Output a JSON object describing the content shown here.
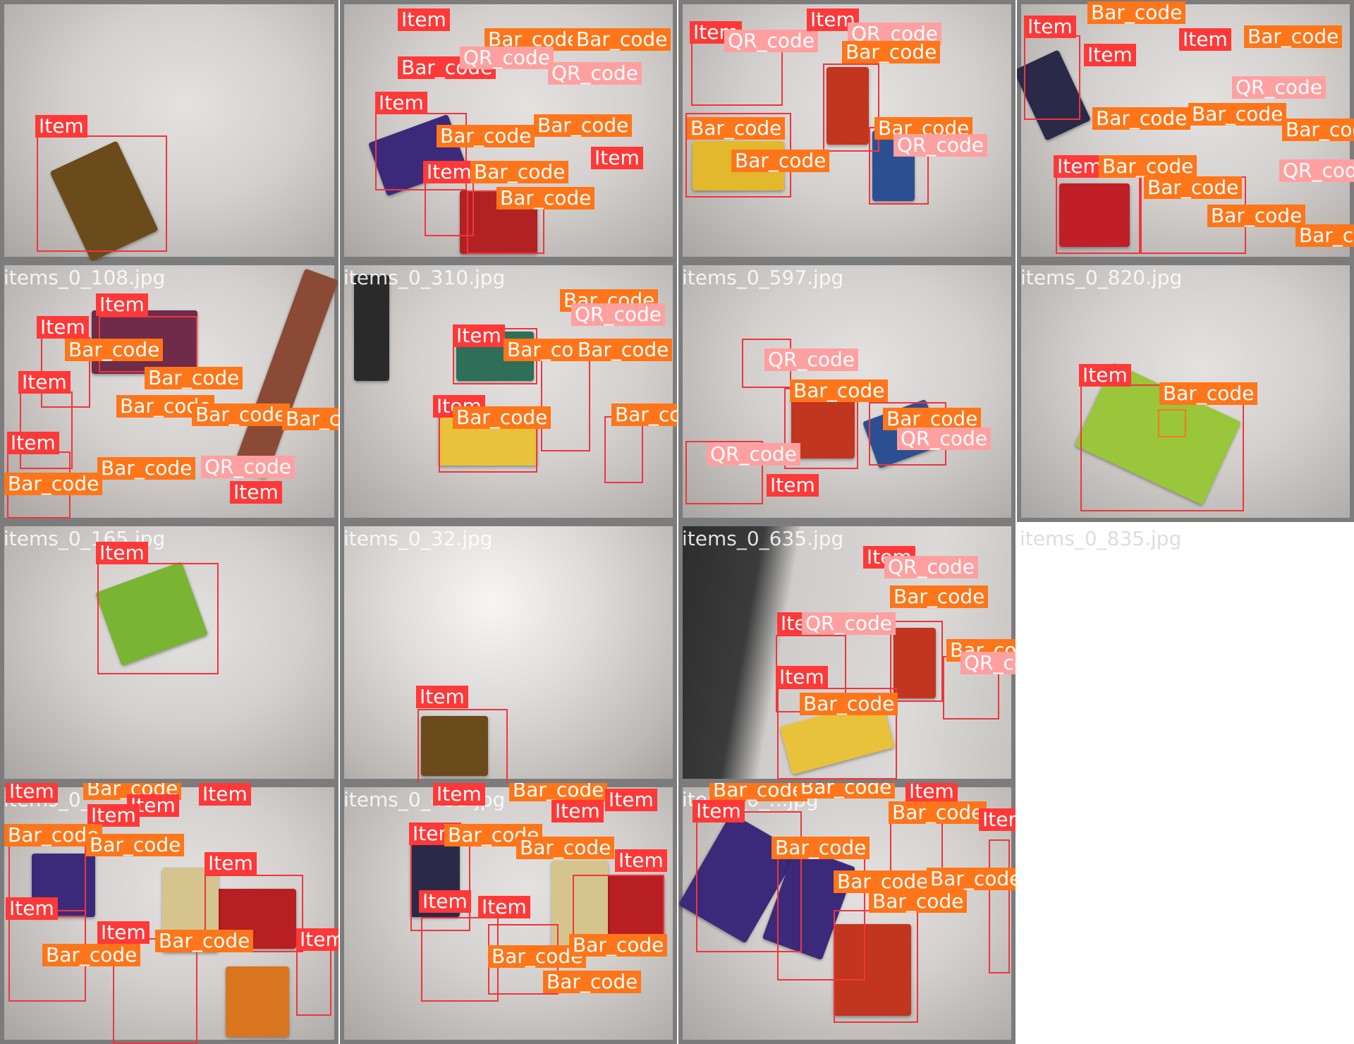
{
  "labels": {
    "item": "Item",
    "bar": "Bar_code",
    "qr": "QR_code"
  },
  "captions": [
    "items_0_108.jpg",
    "items_0_310.jpg",
    "items_0_597.jpg",
    "items_0_820.jpg",
    "items_0_165.jpg",
    "items_0_32.jpg",
    "items_0_635.jpg",
    "items_0_835.jpg",
    "items_0_",
    "items_0_431.jpg",
    "items_0_...jpg"
  ],
  "colors": {
    "item": "#ff3838",
    "bar_code": "#ff7519",
    "qr_code": "#ffa0a0",
    "tile_border": "#7c7c7c"
  }
}
